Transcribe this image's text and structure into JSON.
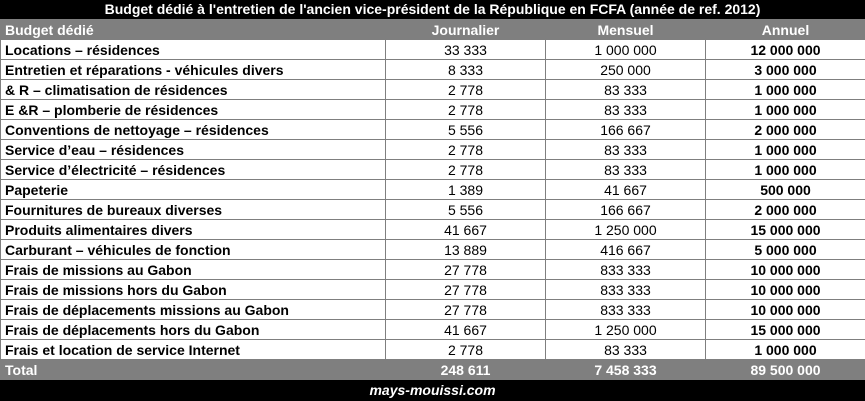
{
  "title": "Budget dédié à l'entretien de l'ancien vice-président de la République en FCFA (année de ref. 2012)",
  "headers": [
    "Budget dédié",
    "Journalier",
    "Mensuel",
    "Annuel"
  ],
  "rows": [
    {
      "label": "Locations – résidences",
      "daily": "33 333",
      "monthly": "1 000 000",
      "annual": "12 000 000"
    },
    {
      "label": "Entretien et réparations - véhicules divers",
      "daily": "8 333",
      "monthly": "250 000",
      "annual": "3 000 000"
    },
    {
      "label": "& R – climatisation de résidences",
      "daily": "2 778",
      "monthly": "83 333",
      "annual": "1 000 000"
    },
    {
      "label": "E &R – plomberie de résidences",
      "daily": "2 778",
      "monthly": "83 333",
      "annual": "1 000 000"
    },
    {
      "label": "Conventions de nettoyage – résidences",
      "daily": "5 556",
      "monthly": "166 667",
      "annual": "2 000 000"
    },
    {
      "label": "Service d’eau – résidences",
      "daily": "2 778",
      "monthly": "83 333",
      "annual": "1 000 000"
    },
    {
      "label": "Service d’électricité – résidences",
      "daily": "2 778",
      "monthly": "83 333",
      "annual": "1 000 000"
    },
    {
      "label": "Papeterie",
      "daily": "1 389",
      "monthly": "41 667",
      "annual": "500 000"
    },
    {
      "label": "Fournitures de bureaux diverses",
      "daily": "5 556",
      "monthly": "166 667",
      "annual": "2 000 000"
    },
    {
      "label": "Produits alimentaires divers",
      "daily": "41 667",
      "monthly": "1 250 000",
      "annual": "15 000 000"
    },
    {
      "label": "Carburant – véhicules de fonction",
      "daily": "13 889",
      "monthly": "416 667",
      "annual": "5 000 000"
    },
    {
      "label": "Frais de missions au Gabon",
      "daily": "27 778",
      "monthly": "833 333",
      "annual": "10 000 000"
    },
    {
      "label": "Frais de missions hors du Gabon",
      "daily": "27 778",
      "monthly": "833 333",
      "annual": "10 000 000"
    },
    {
      "label": "Frais de déplacements missions au Gabon",
      "daily": "27 778",
      "monthly": "833 333",
      "annual": "10 000 000"
    },
    {
      "label": "Frais de déplacements hors du Gabon",
      "daily": "41 667",
      "monthly": "1 250 000",
      "annual": "15 000 000"
    },
    {
      "label": "Frais et location de service Internet",
      "daily": "2 778",
      "monthly": "83 333",
      "annual": "1 000 000"
    }
  ],
  "total": {
    "label": "Total",
    "daily": "248 611",
    "monthly": "7 458 333",
    "annual": "89 500 000"
  },
  "footer": "mays-mouissi.com"
}
